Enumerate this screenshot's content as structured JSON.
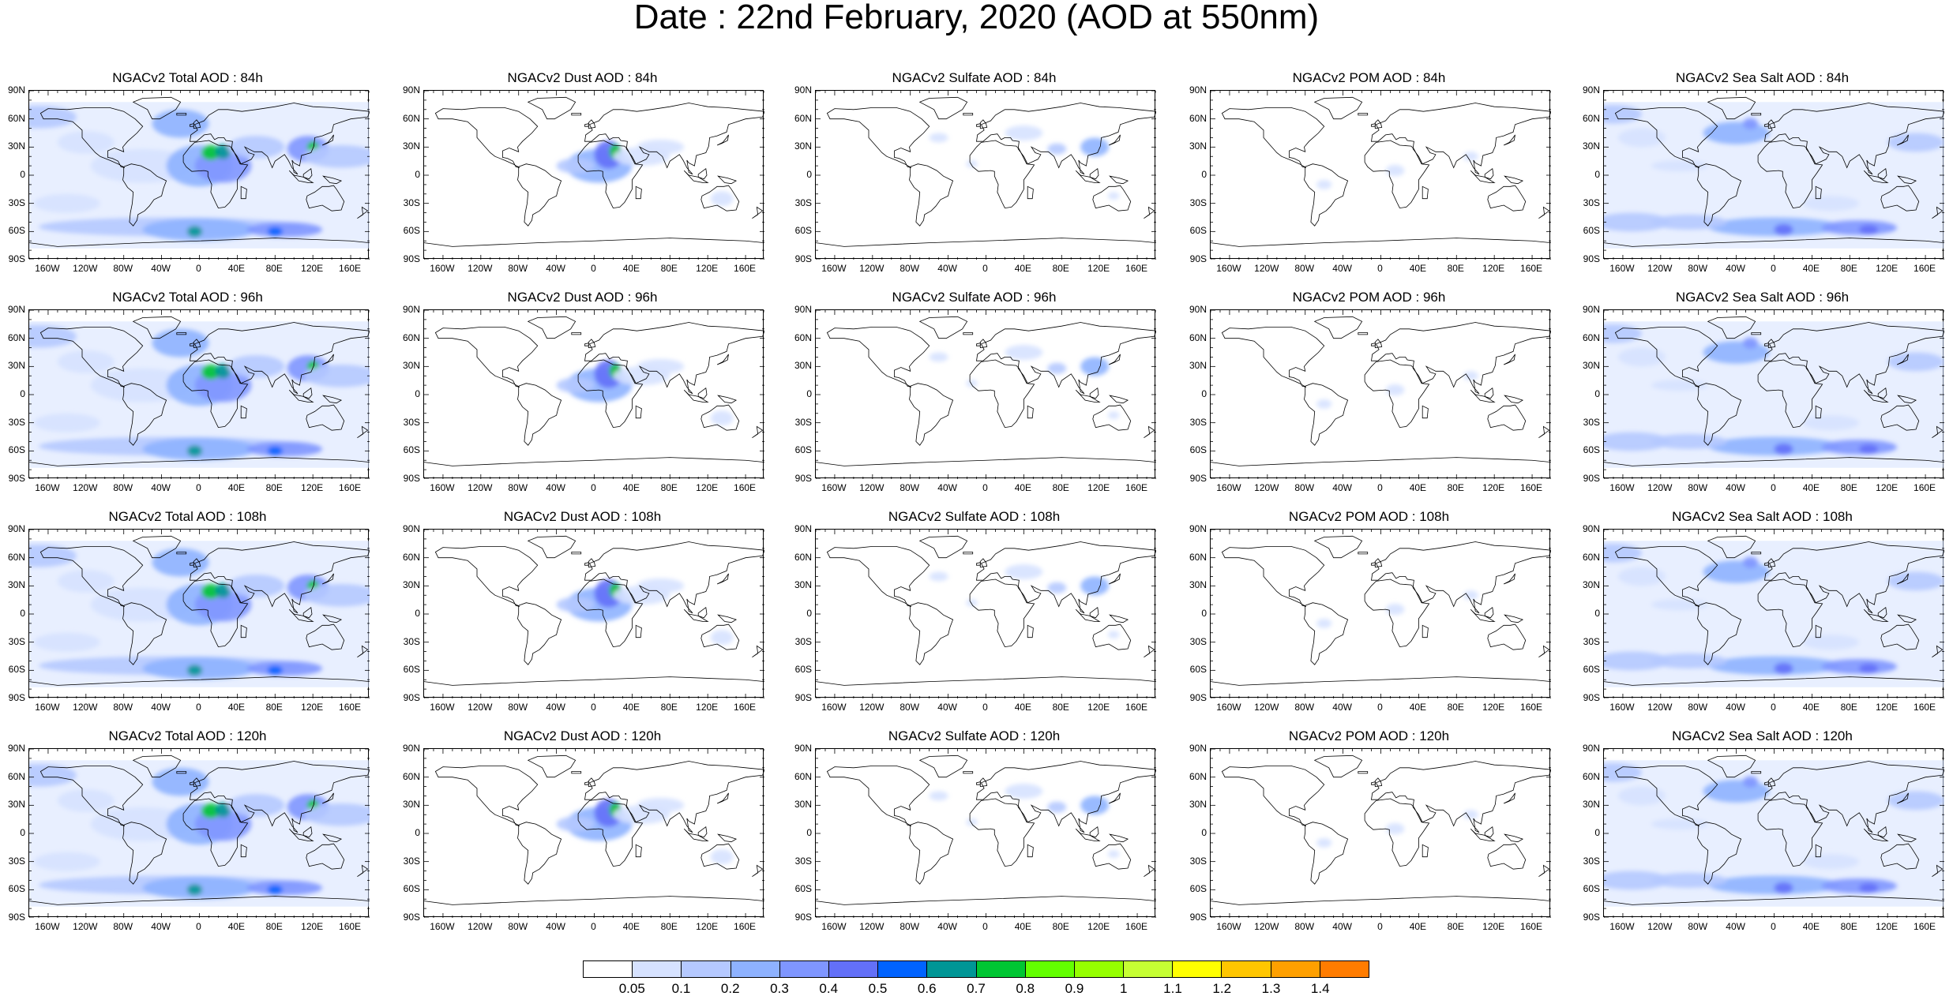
{
  "title": "Date : 22nd February, 2020 (AOD at 550nm)",
  "lat_ticks": [
    "90N",
    "60N",
    "30N",
    "0",
    "30S",
    "60S",
    "90S"
  ],
  "lon_ticks": [
    "160W",
    "120W",
    "80W",
    "40W",
    "0",
    "40E",
    "80E",
    "120E",
    "160E"
  ],
  "panels": [
    {
      "title": "NGACv2 Total AOD : 84h",
      "species": "total"
    },
    {
      "title": "NGACv2 Dust AOD : 84h",
      "species": "dust"
    },
    {
      "title": "NGACv2 Sulfate AOD : 84h",
      "species": "sulfate"
    },
    {
      "title": "NGACv2 POM AOD : 84h",
      "species": "pom"
    },
    {
      "title": "NGACv2 Sea Salt AOD : 84h",
      "species": "seasalt"
    },
    {
      "title": "NGACv2 Total AOD : 96h",
      "species": "total"
    },
    {
      "title": "NGACv2 Dust AOD : 96h",
      "species": "dust"
    },
    {
      "title": "NGACv2 Sulfate AOD : 96h",
      "species": "sulfate"
    },
    {
      "title": "NGACv2 POM AOD : 96h",
      "species": "pom"
    },
    {
      "title": "NGACv2 Sea Salt AOD : 96h",
      "species": "seasalt"
    },
    {
      "title": "NGACv2 Total AOD : 108h",
      "species": "total"
    },
    {
      "title": "NGACv2 Dust AOD : 108h",
      "species": "dust"
    },
    {
      "title": "NGACv2 Sulfate AOD : 108h",
      "species": "sulfate"
    },
    {
      "title": "NGACv2 POM AOD : 108h",
      "species": "pom"
    },
    {
      "title": "NGACv2 Sea Salt AOD : 108h",
      "species": "seasalt"
    },
    {
      "title": "NGACv2 Total AOD : 120h",
      "species": "total"
    },
    {
      "title": "NGACv2 Dust AOD : 120h",
      "species": "dust"
    },
    {
      "title": "NGACv2 Sulfate AOD : 120h",
      "species": "sulfate"
    },
    {
      "title": "NGACv2 POM AOD : 120h",
      "species": "pom"
    },
    {
      "title": "NGACv2 Sea Salt  AOD : 120h",
      "species": "seasalt"
    }
  ],
  "colorbar": {
    "labels": [
      "0.05",
      "0.1",
      "0.2",
      "0.3",
      "0.4",
      "0.5",
      "0.6",
      "0.7",
      "0.8",
      "0.9",
      "1",
      "1.1",
      "1.2",
      "1.3",
      "1.4"
    ],
    "colors": [
      "#ffffff",
      "#d6e2ff",
      "#b5c9ff",
      "#8eb2ff",
      "#7f96ff",
      "#6370f8",
      "#0063ff",
      "#009696",
      "#00c633",
      "#63ff00",
      "#96ff00",
      "#c6ff33",
      "#ffff00",
      "#ffc600",
      "#ffa000",
      "#ff7c00",
      "#ff1900"
    ]
  }
}
